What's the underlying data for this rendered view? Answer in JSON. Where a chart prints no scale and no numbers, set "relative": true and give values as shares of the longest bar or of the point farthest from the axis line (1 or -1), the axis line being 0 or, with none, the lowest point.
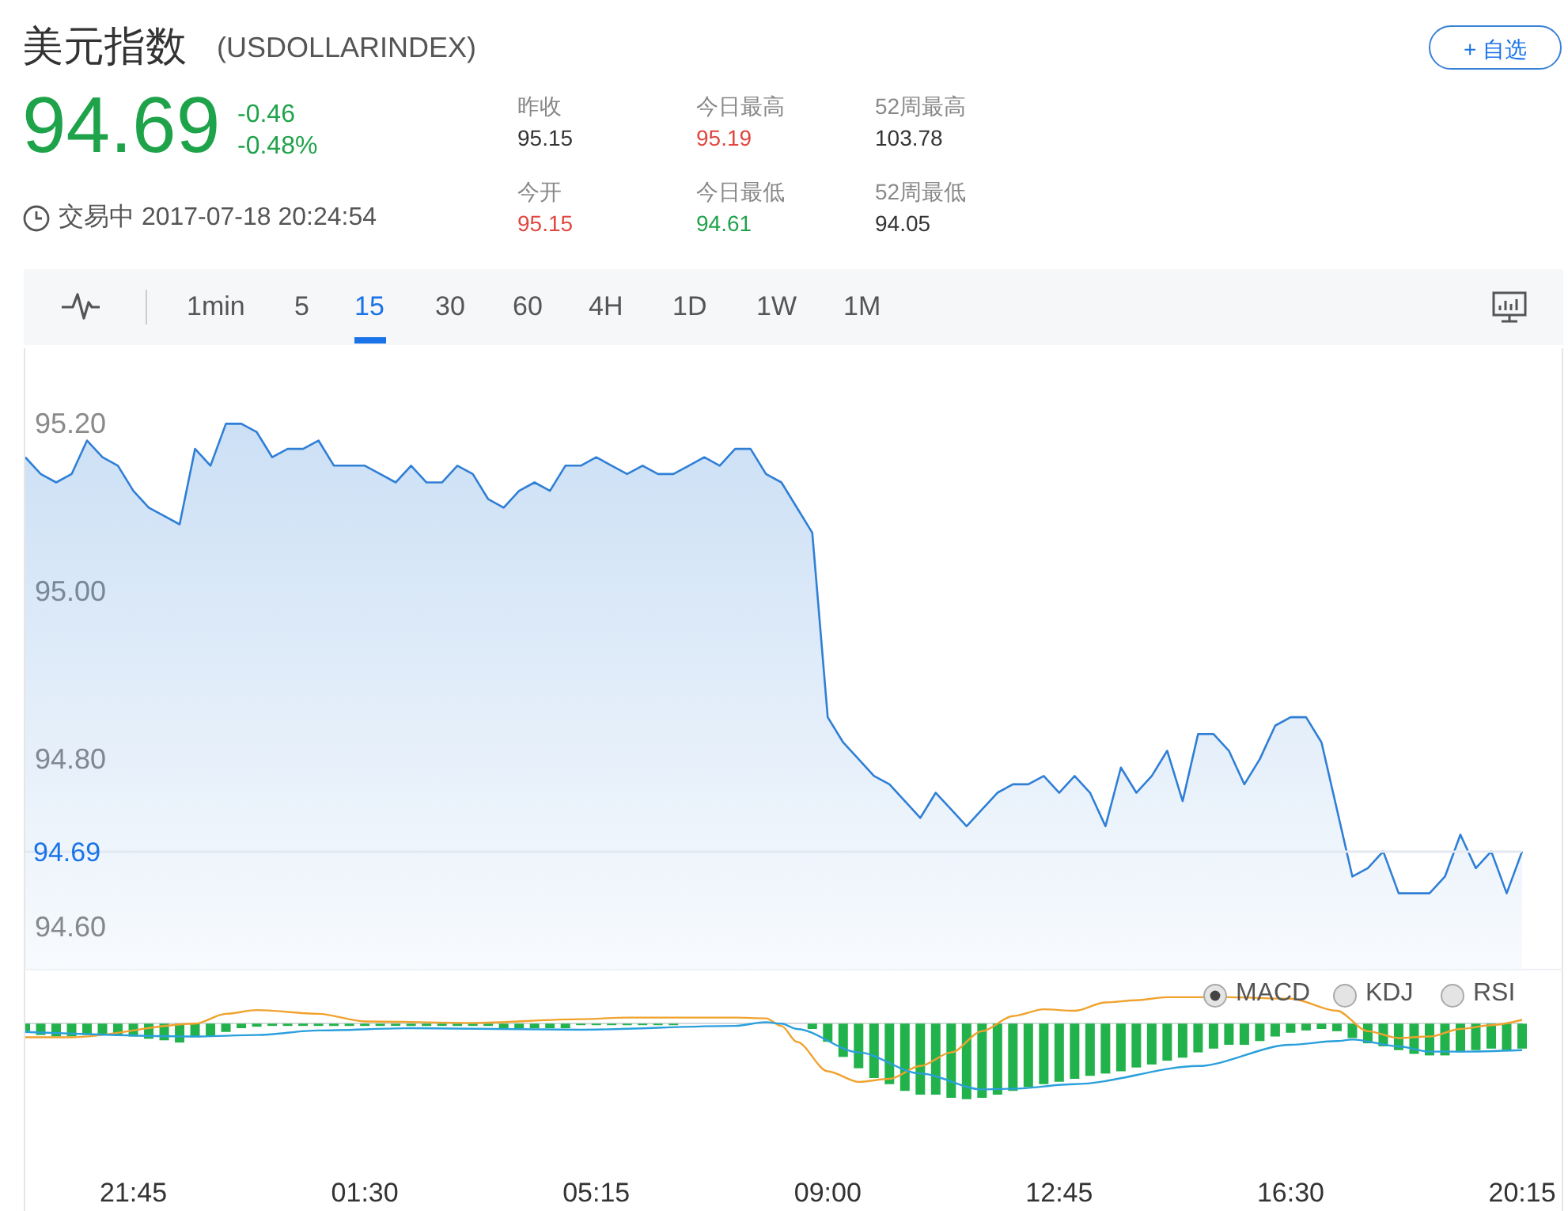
{
  "chart_data": [
    {
      "type": "other",
      "title": "美元指数",
      "subtitle": "(USDOLLARINDEX)",
      "annotations": [
        "94.69",
        "-0.46",
        "-0.48%",
        "交易中 2017-07-18 20:24:54",
        "昨收",
        "95.15",
        "今日最高",
        "95.19",
        "52周最高",
        "103.78",
        "今开",
        "95.15",
        "今日最低",
        "94.61",
        "52周最低",
        "94.05",
        "+ 自选",
        "1min",
        "5",
        "15",
        "30",
        "60",
        "4H",
        "1D",
        "1W",
        "1M"
      ]
    },
    {
      "type": "area",
      "color": "#2f7fd6",
      "tick_labels": "y",
      "xlim": [
        "2017-07-17T20:00",
        "2017-07-18T20:15"
      ],
      "ylim": [
        94.55,
        95.29
      ],
      "yticks": [
        {
          "value": 94.6,
          "label": "94.60"
        },
        {
          "value": 94.8,
          "label": "94.80"
        },
        {
          "value": 95,
          "label": "95.00"
        },
        {
          "value": 95.2,
          "label": "95.20"
        }
      ],
      "ref_lines": [
        {
          "axis": "y",
          "value": 94.69,
          "label": "94.69",
          "color": "#e3e9f1"
        }
      ],
      "x": [
        "2017-07-17T20:00",
        "2017-07-17T20:15",
        "2017-07-17T20:30",
        "2017-07-17T20:45",
        "2017-07-17T21:00",
        "2017-07-17T21:15",
        "2017-07-17T21:30",
        "2017-07-17T21:45",
        "2017-07-17T22:00",
        "2017-07-17T22:15",
        "2017-07-17T22:30",
        "2017-07-17T22:45",
        "2017-07-17T23:00",
        "2017-07-17T23:15",
        "2017-07-17T23:30",
        "2017-07-17T23:45",
        "2017-07-18T00:00",
        "2017-07-18T00:15",
        "2017-07-18T00:30",
        "2017-07-18T00:45",
        "2017-07-18T01:00",
        "2017-07-18T01:15",
        "2017-07-18T01:30",
        "2017-07-18T01:45",
        "2017-07-18T02:00",
        "2017-07-18T02:15",
        "2017-07-18T02:30",
        "2017-07-18T02:45",
        "2017-07-18T03:00",
        "2017-07-18T03:15",
        "2017-07-18T03:30",
        "2017-07-18T03:45",
        "2017-07-18T04:00",
        "2017-07-18T04:15",
        "2017-07-18T04:30",
        "2017-07-18T04:45",
        "2017-07-18T05:00",
        "2017-07-18T05:15",
        "2017-07-18T05:30",
        "2017-07-18T05:45",
        "2017-07-18T06:00",
        "2017-07-18T06:15",
        "2017-07-18T06:30",
        "2017-07-18T06:45",
        "2017-07-18T07:00",
        "2017-07-18T07:15",
        "2017-07-18T07:30",
        "2017-07-18T07:45",
        "2017-07-18T08:00",
        "2017-07-18T08:15",
        "2017-07-18T08:30",
        "2017-07-18T08:45",
        "2017-07-18T09:00",
        "2017-07-18T09:15",
        "2017-07-18T09:30",
        "2017-07-18T09:45",
        "2017-07-18T10:00",
        "2017-07-18T10:15",
        "2017-07-18T10:30",
        "2017-07-18T10:45",
        "2017-07-18T11:00",
        "2017-07-18T11:15",
        "2017-07-18T11:30",
        "2017-07-18T11:45",
        "2017-07-18T12:00",
        "2017-07-18T12:15",
        "2017-07-18T12:30",
        "2017-07-18T12:45",
        "2017-07-18T13:00",
        "2017-07-18T13:15",
        "2017-07-18T13:30",
        "2017-07-18T13:45",
        "2017-07-18T14:00",
        "2017-07-18T14:15",
        "2017-07-18T14:30",
        "2017-07-18T14:45",
        "2017-07-18T15:00",
        "2017-07-18T15:15",
        "2017-07-18T15:30",
        "2017-07-18T15:45",
        "2017-07-18T16:00",
        "2017-07-18T16:15",
        "2017-07-18T16:30",
        "2017-07-18T16:45",
        "2017-07-18T17:00",
        "2017-07-18T17:15",
        "2017-07-18T17:30",
        "2017-07-18T17:45",
        "2017-07-18T18:00",
        "2017-07-18T18:15",
        "2017-07-18T18:30",
        "2017-07-18T18:45",
        "2017-07-18T19:00",
        "2017-07-18T19:15",
        "2017-07-18T19:30",
        "2017-07-18T19:45",
        "2017-07-18T20:00",
        "2017-07-18T20:15"
      ],
      "values": [
        95.16,
        95.14,
        95.13,
        95.14,
        95.18,
        95.16,
        95.15,
        95.12,
        95.1,
        95.09,
        95.08,
        95.17,
        95.15,
        95.2,
        95.2,
        95.19,
        95.16,
        95.17,
        95.17,
        95.18,
        95.15,
        95.15,
        95.15,
        95.14,
        95.13,
        95.15,
        95.13,
        95.13,
        95.15,
        95.14,
        95.11,
        95.1,
        95.12,
        95.13,
        95.12,
        95.15,
        95.15,
        95.16,
        95.15,
        95.14,
        95.15,
        95.14,
        95.14,
        95.15,
        95.16,
        95.15,
        95.17,
        95.17,
        95.14,
        95.13,
        95.1,
        95.07,
        94.85,
        94.82,
        94.8,
        94.78,
        94.77,
        94.75,
        94.73,
        94.76,
        94.74,
        94.72,
        94.74,
        94.76,
        94.77,
        94.77,
        94.78,
        94.76,
        94.78,
        94.76,
        94.72,
        94.79,
        94.76,
        94.78,
        94.81,
        94.75,
        94.83,
        94.83,
        94.81,
        94.77,
        94.8,
        94.84,
        94.85,
        94.85,
        94.82,
        94.74,
        94.66,
        94.67,
        94.69,
        94.64,
        94.64,
        94.64,
        94.66,
        94.71,
        94.67,
        94.69,
        94.64,
        94.69
      ]
    },
    {
      "type": "bar",
      "relative": true,
      "tick_labels": "x",
      "xlim": [
        "2017-07-17T20:00",
        "2017-07-18T20:15"
      ],
      "xticks": [
        {
          "value": "2017-07-17T21:45",
          "label": "21:45"
        },
        {
          "value": "2017-07-18T01:30",
          "label": "01:30"
        },
        {
          "value": "2017-07-18T05:15",
          "label": "05:15"
        },
        {
          "value": "2017-07-18T09:00",
          "label": "09:00"
        },
        {
          "value": "2017-07-18T12:45",
          "label": "12:45"
        },
        {
          "value": "2017-07-18T16:30",
          "label": "16:30"
        },
        {
          "value": "2017-07-18T20:15",
          "label": "20:15"
        }
      ],
      "annotations": [
        "MACD",
        "KDJ",
        "RSI"
      ],
      "x": [
        "2017-07-17T20:00",
        "2017-07-17T20:15",
        "2017-07-17T20:30",
        "2017-07-17T20:45",
        "2017-07-17T21:00",
        "2017-07-17T21:15",
        "2017-07-17T21:30",
        "2017-07-17T21:45",
        "2017-07-17T22:00",
        "2017-07-17T22:15",
        "2017-07-17T22:30",
        "2017-07-17T22:45",
        "2017-07-17T23:00",
        "2017-07-17T23:15",
        "2017-07-17T23:30",
        "2017-07-17T23:45",
        "2017-07-18T00:00",
        "2017-07-18T00:15",
        "2017-07-18T00:30",
        "2017-07-18T00:45",
        "2017-07-18T01:00",
        "2017-07-18T01:15",
        "2017-07-18T01:30",
        "2017-07-18T01:45",
        "2017-07-18T02:00",
        "2017-07-18T02:15",
        "2017-07-18T02:30",
        "2017-07-18T02:45",
        "2017-07-18T03:00",
        "2017-07-18T03:15",
        "2017-07-18T03:30",
        "2017-07-18T03:45",
        "2017-07-18T04:00",
        "2017-07-18T04:15",
        "2017-07-18T04:30",
        "2017-07-18T04:45",
        "2017-07-18T05:00",
        "2017-07-18T05:15",
        "2017-07-18T05:30",
        "2017-07-18T05:45",
        "2017-07-18T06:00",
        "2017-07-18T06:15",
        "2017-07-18T06:30",
        "2017-07-18T06:45",
        "2017-07-18T07:00",
        "2017-07-18T07:15",
        "2017-07-18T07:30",
        "2017-07-18T07:45",
        "2017-07-18T08:00",
        "2017-07-18T08:15",
        "2017-07-18T08:30",
        "2017-07-18T08:45",
        "2017-07-18T09:00",
        "2017-07-18T09:15",
        "2017-07-18T09:30",
        "2017-07-18T09:45",
        "2017-07-18T10:00",
        "2017-07-18T10:15",
        "2017-07-18T10:30",
        "2017-07-18T10:45",
        "2017-07-18T11:00",
        "2017-07-18T11:15",
        "2017-07-18T11:30",
        "2017-07-18T11:45",
        "2017-07-18T12:00",
        "2017-07-18T12:15",
        "2017-07-18T12:30",
        "2017-07-18T12:45",
        "2017-07-18T13:00",
        "2017-07-18T13:15",
        "2017-07-18T13:30",
        "2017-07-18T13:45",
        "2017-07-18T14:00",
        "2017-07-18T14:15",
        "2017-07-18T14:30",
        "2017-07-18T14:45",
        "2017-07-18T15:00",
        "2017-07-18T15:15",
        "2017-07-18T15:30",
        "2017-07-18T15:45",
        "2017-07-18T16:00",
        "2017-07-18T16:15",
        "2017-07-18T16:30",
        "2017-07-18T16:45",
        "2017-07-18T17:00",
        "2017-07-18T17:15",
        "2017-07-18T17:30",
        "2017-07-18T17:45",
        "2017-07-18T18:00",
        "2017-07-18T18:15",
        "2017-07-18T18:30",
        "2017-07-18T18:45",
        "2017-07-18T19:00",
        "2017-07-18T19:15",
        "2017-07-18T19:30",
        "2017-07-18T19:45",
        "2017-07-18T20:00",
        "2017-07-18T20:15"
      ],
      "series": [
        {
          "type": "bar",
          "color": "#22b24c",
          "values": [
            -0.1,
            -0.15,
            -0.17,
            -0.17,
            -0.15,
            -0.15,
            -0.15,
            -0.17,
            -0.2,
            -0.22,
            -0.25,
            -0.18,
            -0.17,
            -0.11,
            -0.06,
            -0.04,
            -0.03,
            -0.03,
            -0.03,
            -0.03,
            -0.03,
            -0.03,
            -0.03,
            -0.03,
            -0.03,
            -0.03,
            -0.03,
            -0.03,
            -0.03,
            -0.03,
            -0.03,
            -0.08,
            -0.06,
            -0.06,
            -0.06,
            -0.06,
            -0.02,
            -0.02,
            -0.02,
            -0.02,
            -0.02,
            -0.02,
            -0.02,
            null,
            null,
            null,
            null,
            null,
            null,
            null,
            null,
            -0.07,
            -0.24,
            -0.44,
            -0.59,
            -0.72,
            -0.8,
            -0.89,
            -0.94,
            -0.94,
            -0.98,
            -1,
            -0.98,
            -0.94,
            -0.89,
            -0.84,
            -0.8,
            -0.77,
            -0.73,
            -0.69,
            -0.66,
            -0.63,
            -0.58,
            -0.54,
            -0.49,
            -0.45,
            -0.38,
            -0.33,
            -0.28,
            -0.28,
            -0.23,
            -0.17,
            -0.12,
            -0.09,
            -0.07,
            -0.1,
            -0.19,
            -0.26,
            -0.3,
            -0.35,
            -0.4,
            -0.42,
            -0.42,
            -0.38,
            -0.35,
            -0.33,
            -0.35,
            -0.33
          ]
        },
        {
          "type": "line",
          "color": "#f0a22e",
          "x": [
            "2017-07-17T20:00",
            "2017-07-17T20:45",
            "2017-07-17T22:45",
            "2017-07-17T23:15",
            "2017-07-17T23:45",
            "2017-07-18T00:45",
            "2017-07-18T01:30",
            "2017-07-18T03:15",
            "2017-07-18T05:00",
            "2017-07-18T05:45",
            "2017-07-18T07:30",
            "2017-07-18T08:00",
            "2017-07-18T08:15",
            "2017-07-18T08:30",
            "2017-07-18T09:00",
            "2017-07-18T09:30",
            "2017-07-18T10:00",
            "2017-07-18T10:30",
            "2017-07-18T11:00",
            "2017-07-18T11:30",
            "2017-07-18T12:00",
            "2017-07-18T12:30",
            "2017-07-18T13:00",
            "2017-07-18T13:30",
            "2017-07-18T14:00",
            "2017-07-18T14:30",
            "2017-07-18T15:30",
            "2017-07-18T16:30",
            "2017-07-18T17:15",
            "2017-07-18T17:45",
            "2017-07-18T18:15",
            "2017-07-18T18:45",
            "2017-07-18T19:15",
            "2017-07-18T19:45",
            "2017-07-18T20:15"
          ],
          "values": [
            -0.18,
            -0.18,
            0,
            0.13,
            0.18,
            0.13,
            0.03,
            0.01,
            0.06,
            0.08,
            0.08,
            0.07,
            -0.03,
            -0.24,
            -0.63,
            -0.77,
            -0.73,
            -0.56,
            -0.38,
            -0.1,
            0.1,
            0.19,
            0.17,
            0.28,
            0.31,
            0.35,
            0.35,
            0.33,
            0.17,
            -0.1,
            -0.19,
            -0.17,
            -0.07,
            -0.02,
            0.05
          ]
        },
        {
          "type": "line",
          "color": "#2a9fdc",
          "x": [
            "2017-07-17T20:00",
            "2017-07-17T22:45",
            "2017-07-17T23:45",
            "2017-07-18T00:45",
            "2017-07-18T02:15",
            "2017-07-18T05:00",
            "2017-07-18T07:30",
            "2017-07-18T08:00",
            "2017-07-18T08:15",
            "2017-07-18T08:30",
            "2017-07-18T09:30",
            "2017-07-18T10:30",
            "2017-07-18T11:30",
            "2017-07-18T12:00",
            "2017-07-18T13:00",
            "2017-07-18T15:00",
            "2017-07-18T16:30",
            "2017-07-18T17:15",
            "2017-07-18T17:30",
            "2017-07-18T18:15",
            "2017-07-18T18:45",
            "2017-07-18T19:15",
            "2017-07-18T20:15"
          ],
          "values": [
            -0.11,
            -0.17,
            -0.15,
            -0.09,
            -0.06,
            -0.08,
            -0.03,
            0.02,
            0,
            -0.07,
            -0.38,
            -0.66,
            -0.87,
            -0.86,
            -0.8,
            -0.56,
            -0.28,
            -0.23,
            -0.21,
            -0.3,
            -0.37,
            -0.37,
            -0.35
          ]
        }
      ]
    }
  ]
}
